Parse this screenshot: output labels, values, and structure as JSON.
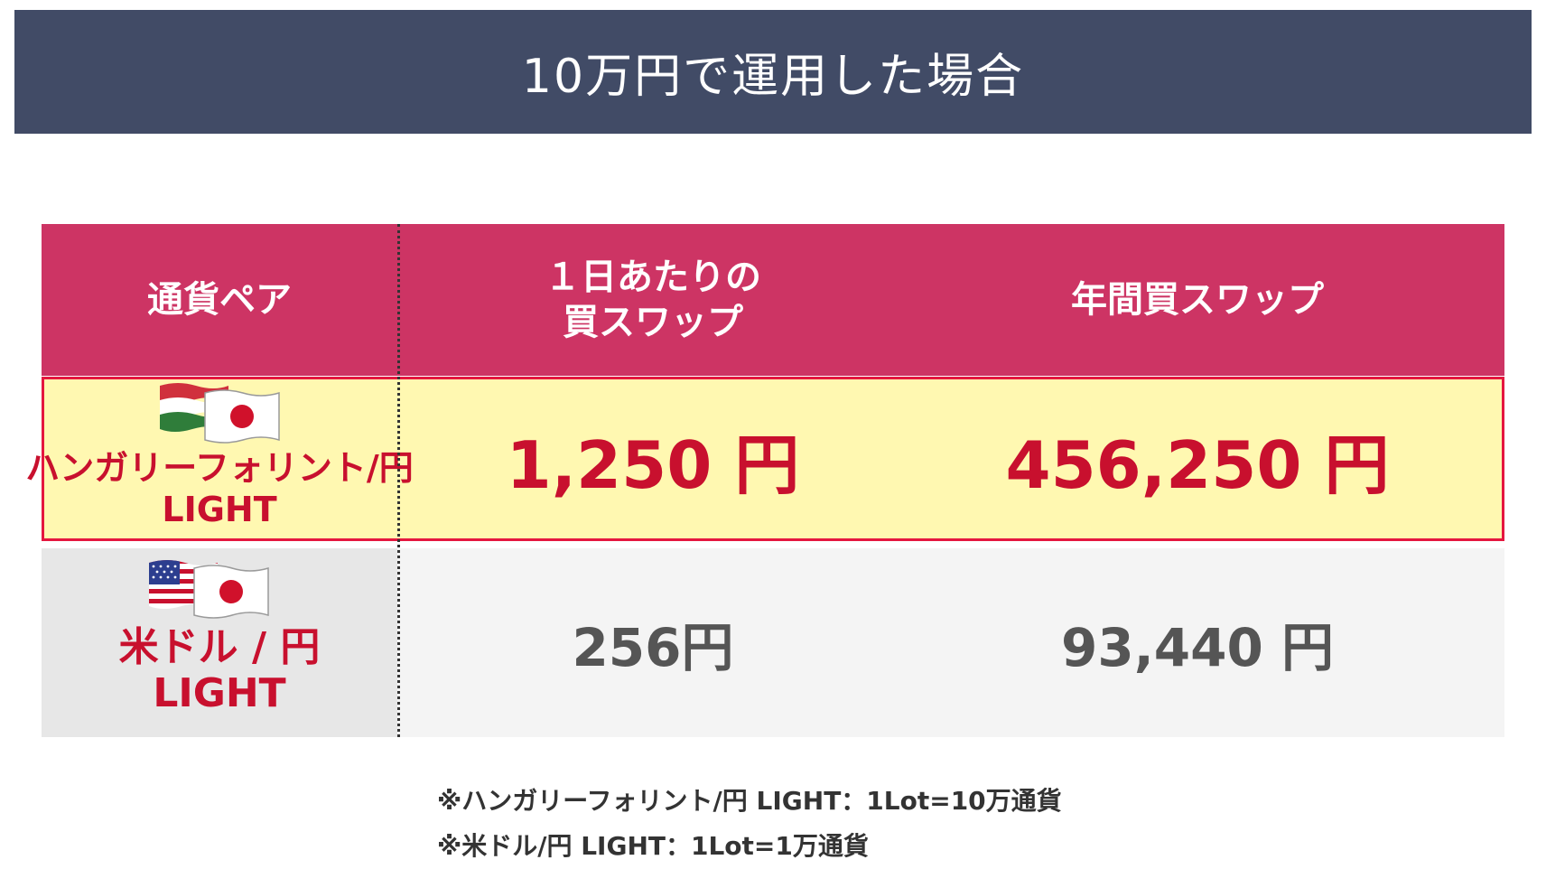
{
  "title": "10万円で運用した場合",
  "table": {
    "headers": {
      "pair": "通貨ペア",
      "daily_line1": "１日あたりの",
      "daily_line2": "買スワップ",
      "annual": "年間買スワップ"
    },
    "rows": [
      {
        "pair_line1": "ハンガリーフォリント/円",
        "pair_line2": "LIGHT",
        "daily": "1,250 円",
        "annual": "456,250 円",
        "flags": [
          "hungary-flag-icon",
          "japan-flag-icon"
        ]
      },
      {
        "pair_line1": "米ドル / 円",
        "pair_line2": "LIGHT",
        "daily": "256円",
        "annual": "93,440 円",
        "flags": [
          "usa-flag-icon",
          "japan-flag-icon"
        ]
      }
    ]
  },
  "notes": [
    "※ハンガリーフォリント/円 LIGHT：1Lot=10万通貨",
    "※米ドル/円 LIGHT：1Lot=1万通貨"
  ],
  "colors": {
    "title_bg": "#414b66",
    "header_bg": "#cd3464",
    "highlight_row_bg": "#fff8b1",
    "highlight_border": "#e5173f",
    "accent_red": "#c8102e"
  }
}
